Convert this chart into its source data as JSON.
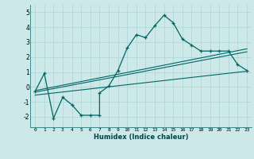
{
  "xlabel": "Humidex (Indice chaleur)",
  "background_color": "#cce8e8",
  "line_color": "#006666",
  "xlim": [
    -0.5,
    23.5
  ],
  "ylim": [
    -2.7,
    5.5
  ],
  "xticks": [
    0,
    1,
    2,
    3,
    4,
    5,
    6,
    7,
    8,
    9,
    10,
    11,
    12,
    13,
    14,
    15,
    16,
    17,
    18,
    19,
    20,
    21,
    22,
    23
  ],
  "yticks": [
    -2,
    -1,
    0,
    1,
    2,
    3,
    4,
    5
  ],
  "main_line": {
    "x": [
      0,
      1,
      2,
      3,
      4,
      5,
      6,
      7,
      7,
      8,
      9,
      10,
      11,
      12,
      13,
      14,
      15,
      16,
      17,
      18,
      19,
      20,
      21,
      22,
      23
    ],
    "y": [
      -0.3,
      0.9,
      -2.1,
      -0.7,
      -1.2,
      -1.9,
      -1.9,
      -1.9,
      -0.4,
      0.05,
      1.1,
      2.6,
      3.5,
      3.3,
      4.1,
      4.8,
      4.3,
      3.2,
      2.8,
      2.4,
      2.4,
      2.4,
      2.4,
      1.5,
      1.1
    ]
  },
  "reg1": {
    "x": [
      0,
      23
    ],
    "y": [
      -0.35,
      2.35
    ]
  },
  "reg2": {
    "x": [
      0,
      23
    ],
    "y": [
      -0.55,
      1.05
    ]
  },
  "reg3": {
    "x": [
      0,
      23
    ],
    "y": [
      -0.25,
      2.55
    ]
  }
}
